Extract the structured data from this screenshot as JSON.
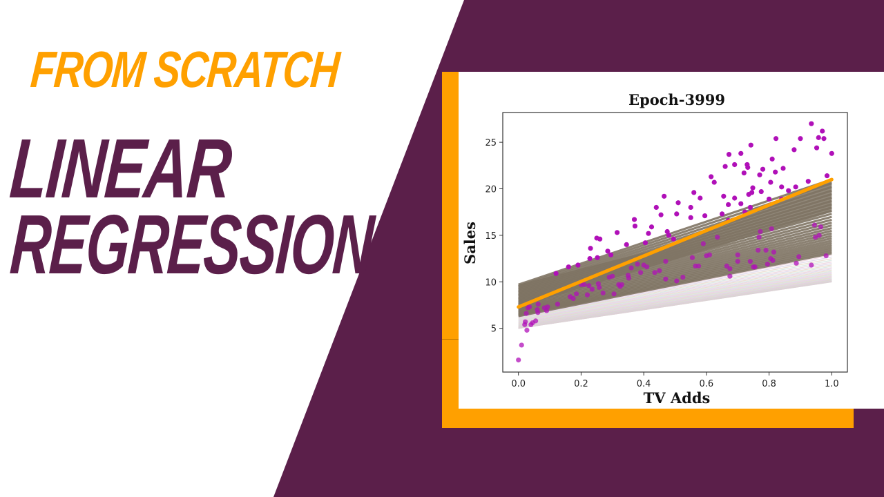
{
  "thumbnail": {
    "subtitle": "FROM SCRATCH",
    "title_line1": "LINEAR",
    "title_line2": "REGRESSION",
    "colors": {
      "background": "#FFFFFF",
      "purple": "#5B1F4A",
      "orange": "#FFA000",
      "point": "#B010B8",
      "fit_line": "#FFA000",
      "history_band": "#7E7363"
    }
  },
  "chart_data": {
    "type": "scatter",
    "title": "Epoch-3999",
    "xlabel": "TV Adds",
    "ylabel": "Sales",
    "xlim": [
      -0.05,
      1.05
    ],
    "ylim": [
      0.3,
      28.2
    ],
    "xticks": [
      "0.0",
      "0.2",
      "0.4",
      "0.6",
      "0.8",
      "1.0"
    ],
    "xtick_values": [
      0.0,
      0.2,
      0.4,
      0.6,
      0.8,
      1.0
    ],
    "yticks": [
      "5",
      "10",
      "15",
      "20",
      "25"
    ],
    "ytick_values": [
      5,
      10,
      15,
      20,
      25
    ],
    "grid": false,
    "legend": null,
    "fit_line": {
      "name": "Epoch-3999 fit",
      "x": [
        0.0,
        1.0
      ],
      "y": [
        7.3,
        21.0
      ],
      "color": "#FFA000"
    },
    "history_lines": {
      "description": "Earlier-epoch regression lines drawn semi-transparent, converging toward the final fit",
      "first_epoch": {
        "x": [
          0.0,
          1.0
        ],
        "y": [
          5.0,
          10.0
        ]
      },
      "upper_envelope": {
        "x": [
          0.0,
          0.5,
          1.0
        ],
        "y": [
          9.7,
          14.0,
          21.0
        ]
      },
      "count_drawn": 60
    },
    "series": [
      {
        "name": "Sales vs TV Adds",
        "color": "#B010B8",
        "points": [
          [
            0.0,
            1.6
          ],
          [
            0.01,
            3.2
          ],
          [
            0.02,
            5.4
          ],
          [
            0.022,
            5.7
          ],
          [
            0.025,
            6.6
          ],
          [
            0.027,
            4.8
          ],
          [
            0.03,
            7.2
          ],
          [
            0.035,
            7.3
          ],
          [
            0.04,
            5.4
          ],
          [
            0.045,
            5.6
          ],
          [
            0.055,
            5.8
          ],
          [
            0.06,
            7.0
          ],
          [
            0.062,
            6.7
          ],
          [
            0.063,
            7.6
          ],
          [
            0.083,
            7.2
          ],
          [
            0.09,
            6.9
          ],
          [
            0.093,
            7.3
          ],
          [
            0.12,
            10.9
          ],
          [
            0.125,
            7.6
          ],
          [
            0.16,
            11.6
          ],
          [
            0.165,
            8.4
          ],
          [
            0.175,
            8.2
          ],
          [
            0.185,
            8.7
          ],
          [
            0.19,
            11.8
          ],
          [
            0.2,
            9.7
          ],
          [
            0.21,
            9.7
          ],
          [
            0.22,
            8.6
          ],
          [
            0.225,
            9.6
          ],
          [
            0.228,
            12.5
          ],
          [
            0.23,
            13.6
          ],
          [
            0.235,
            9.2
          ],
          [
            0.25,
            14.7
          ],
          [
            0.252,
            12.6
          ],
          [
            0.255,
            9.8
          ],
          [
            0.26,
            14.6
          ],
          [
            0.258,
            9.4
          ],
          [
            0.27,
            8.8
          ],
          [
            0.285,
            13.3
          ],
          [
            0.29,
            10.5
          ],
          [
            0.295,
            12.9
          ],
          [
            0.3,
            10.6
          ],
          [
            0.305,
            8.7
          ],
          [
            0.315,
            15.3
          ],
          [
            0.32,
            9.7
          ],
          [
            0.325,
            9.5
          ],
          [
            0.33,
            9.7
          ],
          [
            0.345,
            14.0
          ],
          [
            0.35,
            10.7
          ],
          [
            0.352,
            10.4
          ],
          [
            0.36,
            11.5
          ],
          [
            0.37,
            16.7
          ],
          [
            0.372,
            16.0
          ],
          [
            0.38,
            11.9
          ],
          [
            0.39,
            11.0
          ],
          [
            0.4,
            11.8
          ],
          [
            0.405,
            14.2
          ],
          [
            0.41,
            11.6
          ],
          [
            0.415,
            15.2
          ],
          [
            0.425,
            15.9
          ],
          [
            0.435,
            11.0
          ],
          [
            0.44,
            18.0
          ],
          [
            0.45,
            11.2
          ],
          [
            0.455,
            17.2
          ],
          [
            0.465,
            19.2
          ],
          [
            0.47,
            12.2
          ],
          [
            0.47,
            10.3
          ],
          [
            0.475,
            15.4
          ],
          [
            0.48,
            15.0
          ],
          [
            0.495,
            14.6
          ],
          [
            0.505,
            10.1
          ],
          [
            0.505,
            17.3
          ],
          [
            0.51,
            18.5
          ],
          [
            0.525,
            10.5
          ],
          [
            0.55,
            18.0
          ],
          [
            0.55,
            16.9
          ],
          [
            0.555,
            12.6
          ],
          [
            0.56,
            19.6
          ],
          [
            0.565,
            11.7
          ],
          [
            0.575,
            11.7
          ],
          [
            0.58,
            19.0
          ],
          [
            0.59,
            14.1
          ],
          [
            0.595,
            17.1
          ],
          [
            0.6,
            12.8
          ],
          [
            0.61,
            12.9
          ],
          [
            0.615,
            21.3
          ],
          [
            0.625,
            20.7
          ],
          [
            0.635,
            14.8
          ],
          [
            0.65,
            17.3
          ],
          [
            0.655,
            19.2
          ],
          [
            0.66,
            22.4
          ],
          [
            0.665,
            11.7
          ],
          [
            0.67,
            16.6
          ],
          [
            0.67,
            18.3
          ],
          [
            0.672,
            23.7
          ],
          [
            0.675,
            11.4
          ],
          [
            0.675,
            10.6
          ],
          [
            0.69,
            22.6
          ],
          [
            0.69,
            19.0
          ],
          [
            0.7,
            12.9
          ],
          [
            0.7,
            12.2
          ],
          [
            0.71,
            18.4
          ],
          [
            0.71,
            23.8
          ],
          [
            0.72,
            21.7
          ],
          [
            0.723,
            17.5
          ],
          [
            0.73,
            22.6
          ],
          [
            0.732,
            22.3
          ],
          [
            0.735,
            19.4
          ],
          [
            0.74,
            18.0
          ],
          [
            0.74,
            12.2
          ],
          [
            0.742,
            24.7
          ],
          [
            0.745,
            19.6
          ],
          [
            0.748,
            20.1
          ],
          [
            0.75,
            11.6
          ],
          [
            0.755,
            11.6
          ],
          [
            0.765,
            13.4
          ],
          [
            0.768,
            14.8
          ],
          [
            0.77,
            21.5
          ],
          [
            0.772,
            15.4
          ],
          [
            0.775,
            19.7
          ],
          [
            0.78,
            22.1
          ],
          [
            0.79,
            13.4
          ],
          [
            0.795,
            11.9
          ],
          [
            0.8,
            18.9
          ],
          [
            0.805,
            12.5
          ],
          [
            0.805,
            20.7
          ],
          [
            0.808,
            15.7
          ],
          [
            0.81,
            23.2
          ],
          [
            0.812,
            12.3
          ],
          [
            0.815,
            13.2
          ],
          [
            0.82,
            21.8
          ],
          [
            0.822,
            25.4
          ],
          [
            0.84,
            20.2
          ],
          [
            0.84,
            18.9
          ],
          [
            0.845,
            22.2
          ],
          [
            0.862,
            19.8
          ],
          [
            0.88,
            24.2
          ],
          [
            0.885,
            20.2
          ],
          [
            0.887,
            12.0
          ],
          [
            0.895,
            12.7
          ],
          [
            0.9,
            25.4
          ],
          [
            0.925,
            20.8
          ],
          [
            0.935,
            11.8
          ],
          [
            0.935,
            27.0
          ],
          [
            0.945,
            16.1
          ],
          [
            0.948,
            14.8
          ],
          [
            0.952,
            24.4
          ],
          [
            0.958,
            25.5
          ],
          [
            0.96,
            15.0
          ],
          [
            0.965,
            15.9
          ],
          [
            0.97,
            26.2
          ],
          [
            0.975,
            25.4
          ],
          [
            0.982,
            12.8
          ],
          [
            0.985,
            21.4
          ],
          [
            1.0,
            23.8
          ]
        ]
      }
    ]
  }
}
